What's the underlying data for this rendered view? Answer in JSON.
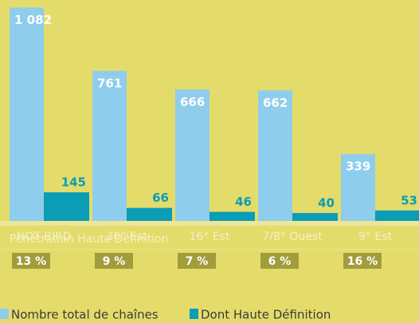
{
  "chart_data": {
    "type": "bar",
    "categories": [
      "HOT BIRD",
      "36° Est",
      "16° Est",
      "7/8° Ouest",
      "9° Est"
    ],
    "series": [
      {
        "name": "Nombre total de chaînes",
        "color": "#8ecdec",
        "values": [
          1082,
          761,
          666,
          662,
          339
        ],
        "value_labels": [
          "1 082",
          "761",
          "666",
          "662",
          "339"
        ]
      },
      {
        "name": "Dont Haute Définition",
        "color": "#0b9cb6",
        "values": [
          145,
          66,
          46,
          40,
          53
        ]
      }
    ],
    "ylim": [
      0,
      1100
    ],
    "penetration": {
      "title": "Pénétration Haute Définition",
      "values": [
        13,
        9,
        7,
        6,
        16
      ],
      "value_labels": [
        "13 %",
        "9 %",
        "7 %",
        "6 %",
        "16 %"
      ],
      "color": "#a19c3c"
    }
  }
}
